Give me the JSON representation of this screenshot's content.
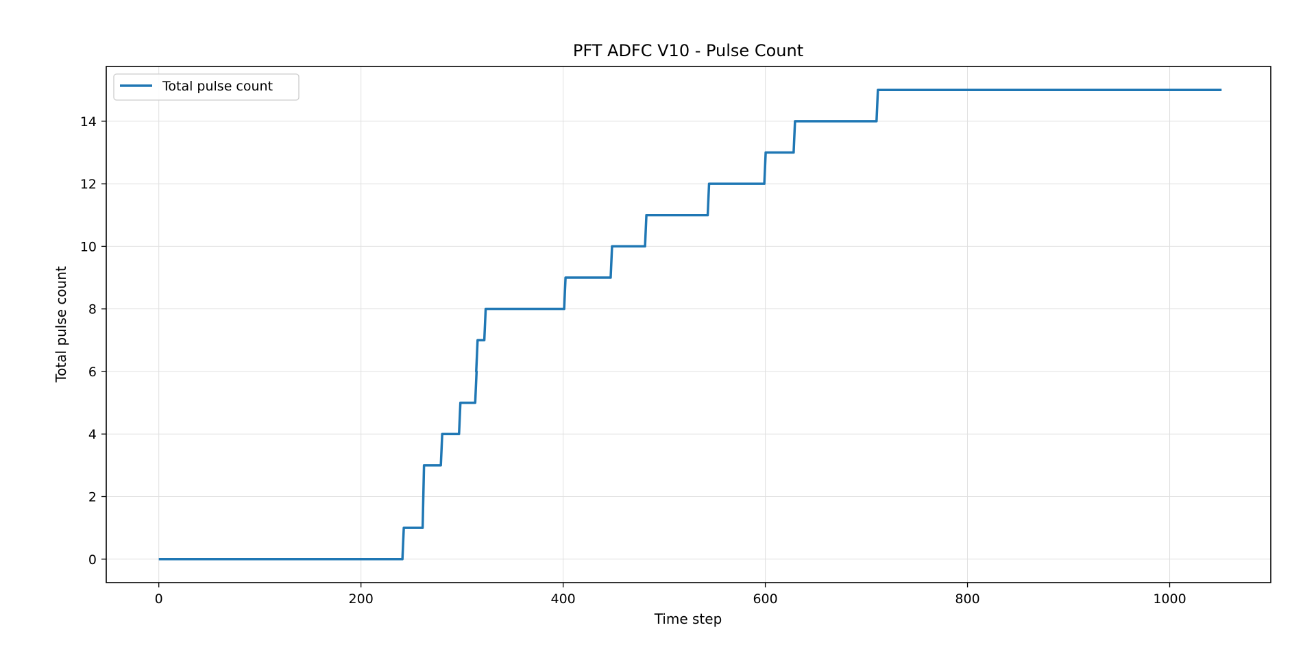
{
  "chart_data": {
    "type": "line",
    "title": "PFT ADFC V10 - Pulse Count",
    "xlabel": "Time step",
    "ylabel": "Total pulse count",
    "xlim": [
      -52,
      1100
    ],
    "ylim": [
      -0.75,
      15.75
    ],
    "xticks": [
      0,
      200,
      400,
      600,
      800,
      1000
    ],
    "xtick_labels": [
      "0",
      "200",
      "400",
      "600",
      "800",
      "1000"
    ],
    "yticks": [
      0,
      2,
      4,
      6,
      8,
      10,
      12,
      14
    ],
    "ytick_labels": [
      "0",
      "2",
      "4",
      "6",
      "8",
      "10",
      "12",
      "14"
    ],
    "grid": true,
    "legend_position": "upper left",
    "series": [
      {
        "name": "Total pulse count",
        "color": "#1f77b4",
        "step": true,
        "x": [
          0,
          241,
          261,
          279,
          297,
          313,
          314,
          322,
          401,
          447,
          481,
          543,
          599,
          628,
          710,
          1050
        ],
        "y": [
          0,
          1,
          3,
          4,
          5,
          6,
          7,
          8,
          9,
          10,
          11,
          12,
          13,
          14,
          15,
          15
        ]
      }
    ]
  }
}
